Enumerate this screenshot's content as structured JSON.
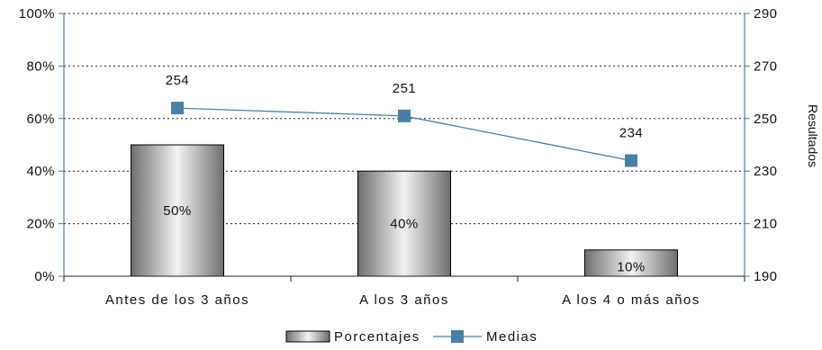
{
  "chart_data": {
    "type": "bar",
    "categories": [
      "Antes de los 3 años",
      "A los 3 años",
      "A los 4 o más años"
    ],
    "series": [
      {
        "name": "Porcentajes",
        "type": "bar",
        "axis": "left",
        "values": [
          50,
          40,
          10
        ],
        "labels": [
          "50%",
          "40%",
          "10%"
        ]
      },
      {
        "name": "Medias",
        "type": "line",
        "axis": "right",
        "values": [
          254,
          251,
          234
        ],
        "labels": [
          "254",
          "251",
          "234"
        ],
        "color": "#4a7fa5"
      }
    ],
    "y_left": {
      "ticks": [
        0,
        20,
        40,
        60,
        80,
        100
      ],
      "tick_labels": [
        "0%",
        "20%",
        "40%",
        "60%",
        "80%",
        "100%"
      ],
      "ylim": [
        0,
        100
      ]
    },
    "y_right": {
      "label": "Resultados",
      "ticks": [
        190,
        210,
        230,
        250,
        270,
        290
      ],
      "tick_labels": [
        "190",
        "210",
        "230",
        "250",
        "270",
        "290"
      ],
      "ylim": [
        190,
        290
      ]
    },
    "grid": "horizontal-dotted",
    "legend_position": "bottom-center",
    "colors": {
      "axis": "#4a7fa5",
      "line": "#4a7fa5",
      "marker": "#4a7fa5",
      "bar_edge": "#000000"
    }
  }
}
